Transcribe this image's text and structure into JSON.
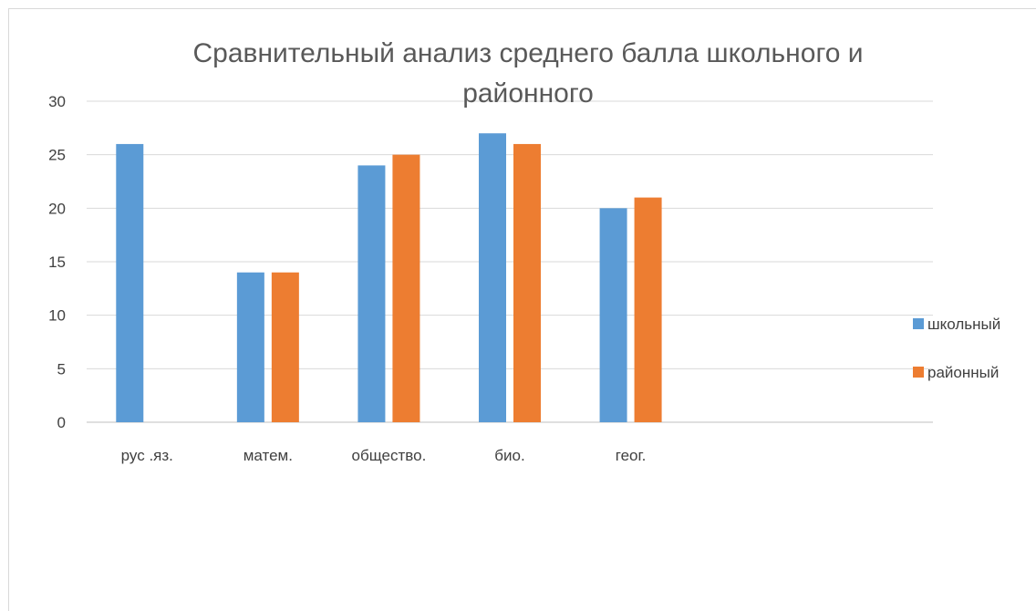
{
  "chart_data": {
    "type": "bar",
    "title_line1": "Сравнительный анализ среднего балла  школьного и",
    "title_line2": "районного",
    "categories": [
      "рус .яз.",
      "матем.",
      "общество.",
      "био.",
      "геог.",
      "",
      ""
    ],
    "series": [
      {
        "name": "школьный",
        "color": "#5b9bd5",
        "values": [
          26,
          14,
          24,
          27,
          20,
          null,
          null
        ]
      },
      {
        "name": "районный",
        "color": "#ed7d31",
        "values": [
          null,
          14,
          25,
          26,
          21,
          null,
          null
        ]
      }
    ],
    "ylim": [
      0,
      30
    ],
    "yticks": [
      0,
      5,
      10,
      15,
      20,
      25,
      30
    ],
    "grid": true,
    "legend_position": "right"
  }
}
